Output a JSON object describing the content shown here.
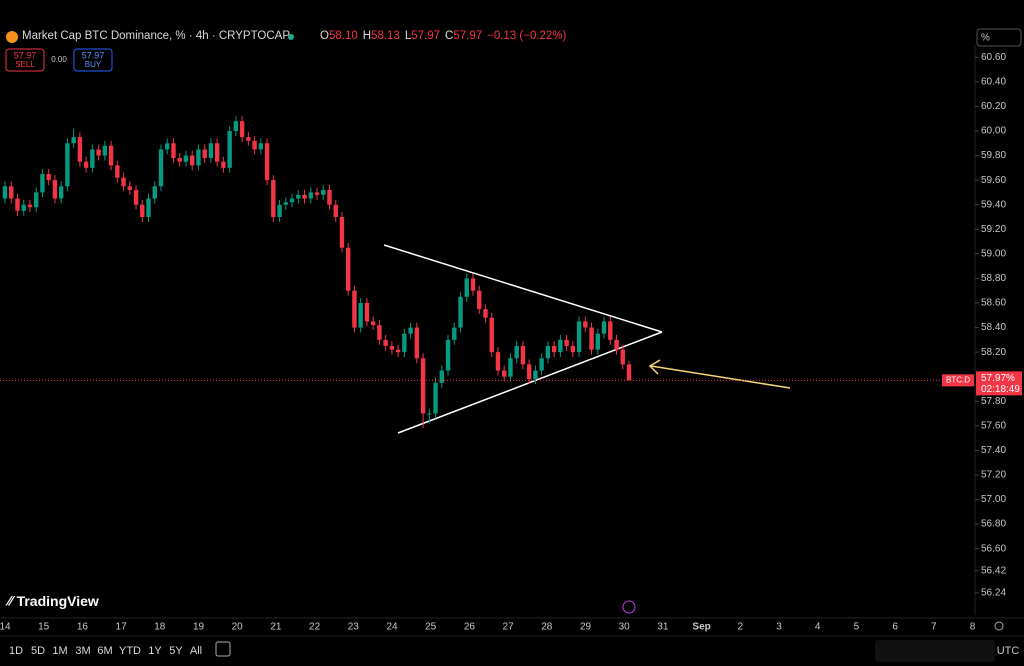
{
  "header": {
    "title": "Market Cap BTC Dominance, % · 4h · CRYPTOCAP",
    "ohlc": [
      {
        "label": "O",
        "value": "58.10"
      },
      {
        "label": "H",
        "value": "58.13"
      },
      {
        "label": "L",
        "value": "57.97"
      },
      {
        "label": "C",
        "value": "57.97"
      }
    ],
    "change": "−0.13 (−0.22%)"
  },
  "trade": {
    "sell_price": "57.97",
    "sell_label": "SELL",
    "spread": "0.00",
    "buy_price": "57.97",
    "buy_label": "BUY"
  },
  "chart_data": {
    "type": "candlestick",
    "open": [
      59.45,
      59.55,
      59.45,
      59.35,
      59.4,
      59.38,
      59.5,
      59.65,
      59.6,
      59.45,
      59.55,
      59.9,
      59.95,
      59.75,
      59.7,
      59.85,
      59.8,
      59.88,
      59.72,
      59.62,
      59.55,
      59.52,
      59.4,
      59.3,
      59.45,
      59.55,
      59.85,
      59.9,
      59.78,
      59.75,
      59.8,
      59.72,
      59.85,
      59.78,
      59.9,
      59.75,
      59.7,
      60.0,
      60.08,
      59.95,
      59.92,
      59.85,
      59.9,
      59.6,
      59.3,
      59.4,
      59.42,
      59.45,
      59.48,
      59.45,
      59.5,
      59.48,
      59.52,
      59.4,
      59.3,
      59.05,
      58.7,
      58.4,
      58.6,
      58.45,
      58.42,
      58.3,
      58.25,
      58.22,
      58.2,
      58.35,
      58.4,
      58.15,
      57.7,
      57.7,
      57.95,
      58.05,
      58.3,
      58.4,
      58.65,
      58.8,
      58.7,
      58.55,
      58.48,
      58.2,
      58.05,
      58.0,
      58.15,
      58.25,
      58.1,
      57.98,
      58.05,
      58.15,
      58.25,
      58.2,
      58.3,
      58.25,
      58.2,
      58.45,
      58.4,
      58.22,
      58.35,
      58.45,
      58.3,
      58.22,
      58.1
    ],
    "high": [
      59.59,
      59.59,
      59.49,
      59.44,
      59.44,
      59.54,
      59.69,
      59.69,
      59.64,
      59.59,
      59.94,
      60.02,
      59.99,
      59.79,
      59.89,
      59.89,
      59.92,
      59.92,
      59.76,
      59.66,
      59.59,
      59.56,
      59.44,
      59.49,
      59.59,
      59.89,
      59.94,
      59.94,
      59.82,
      59.84,
      59.84,
      59.89,
      59.89,
      59.94,
      59.94,
      59.79,
      60.04,
      60.12,
      60.12,
      59.99,
      59.96,
      59.94,
      59.94,
      59.64,
      59.44,
      59.46,
      59.49,
      59.52,
      59.52,
      59.54,
      59.54,
      59.56,
      59.56,
      59.44,
      59.34,
      59.09,
      58.74,
      58.64,
      58.64,
      58.49,
      58.46,
      58.34,
      58.29,
      58.26,
      58.39,
      58.44,
      58.44,
      58.19,
      57.74,
      57.99,
      58.09,
      58.34,
      58.44,
      58.69,
      58.84,
      58.84,
      58.74,
      58.59,
      58.52,
      58.24,
      58.09,
      58.19,
      58.29,
      58.29,
      58.14,
      58.09,
      58.19,
      58.29,
      58.29,
      58.34,
      58.34,
      58.29,
      58.49,
      58.49,
      58.44,
      58.39,
      58.49,
      58.49,
      58.34,
      58.26,
      58.13
    ],
    "low": [
      59.41,
      59.41,
      59.31,
      59.31,
      59.34,
      59.34,
      59.46,
      59.56,
      59.41,
      59.41,
      59.51,
      59.86,
      59.71,
      59.66,
      59.66,
      59.76,
      59.76,
      59.68,
      59.58,
      59.51,
      59.48,
      59.36,
      59.26,
      59.26,
      59.41,
      59.51,
      59.81,
      59.74,
      59.71,
      59.71,
      59.68,
      59.68,
      59.74,
      59.74,
      59.71,
      59.66,
      59.66,
      59.96,
      59.91,
      59.88,
      59.81,
      59.81,
      59.56,
      59.26,
      59.26,
      59.36,
      59.38,
      59.41,
      59.41,
      59.41,
      59.44,
      59.44,
      59.36,
      59.26,
      59.01,
      58.66,
      58.36,
      58.36,
      58.41,
      58.38,
      58.26,
      58.21,
      58.18,
      58.16,
      58.16,
      58.31,
      58.11,
      57.58,
      57.62,
      57.66,
      57.91,
      58.01,
      58.26,
      58.36,
      58.61,
      58.66,
      58.51,
      58.44,
      58.16,
      58.01,
      57.96,
      57.96,
      58.11,
      58.06,
      57.94,
      57.94,
      58.01,
      58.11,
      58.16,
      58.16,
      58.21,
      58.16,
      58.16,
      58.36,
      58.18,
      58.18,
      58.31,
      58.26,
      58.18,
      58.06,
      57.97
    ],
    "close": [
      59.55,
      59.45,
      59.35,
      59.4,
      59.38,
      59.5,
      59.65,
      59.6,
      59.45,
      59.55,
      59.9,
      59.95,
      59.75,
      59.7,
      59.85,
      59.8,
      59.88,
      59.72,
      59.62,
      59.55,
      59.52,
      59.4,
      59.3,
      59.45,
      59.55,
      59.85,
      59.9,
      59.78,
      59.75,
      59.8,
      59.72,
      59.85,
      59.78,
      59.9,
      59.75,
      59.7,
      60.0,
      60.08,
      59.95,
      59.92,
      59.85,
      59.9,
      59.6,
      59.3,
      59.4,
      59.42,
      59.45,
      59.48,
      59.45,
      59.5,
      59.48,
      59.52,
      59.4,
      59.3,
      59.05,
      58.7,
      58.4,
      58.6,
      58.45,
      58.42,
      58.3,
      58.25,
      58.22,
      58.2,
      58.35,
      58.4,
      58.15,
      57.7,
      57.7,
      57.95,
      58.05,
      58.3,
      58.4,
      58.65,
      58.8,
      58.7,
      58.55,
      58.48,
      58.2,
      58.05,
      58.0,
      58.15,
      58.25,
      58.1,
      57.98,
      58.05,
      58.15,
      58.25,
      58.2,
      58.3,
      58.25,
      58.2,
      58.45,
      58.4,
      58.22,
      58.35,
      58.45,
      58.3,
      58.22,
      58.1,
      57.97
    ],
    "ylim": [
      56.06,
      60.7
    ],
    "yticks": [
      {
        "value": 60.6,
        "label": "60.60"
      },
      {
        "value": 60.4,
        "label": "60.40"
      },
      {
        "value": 60.2,
        "label": "60.20"
      },
      {
        "value": 60,
        "label": "60.00"
      },
      {
        "value": 59.8,
        "label": "59.80"
      },
      {
        "value": 59.6,
        "label": "59.60"
      },
      {
        "value": 59.4,
        "label": "59.40"
      },
      {
        "value": 59.2,
        "label": "59.20"
      },
      {
        "value": 59,
        "label": "59.00"
      },
      {
        "value": 58.8,
        "label": "58.80"
      },
      {
        "value": 58.6,
        "label": "58.60"
      },
      {
        "value": 58.4,
        "label": "58.40"
      },
      {
        "value": 58.2,
        "label": "58.20"
      },
      {
        "value": 57.8,
        "label": "57.80"
      },
      {
        "value": 57.6,
        "label": "57.60"
      },
      {
        "value": 57.4,
        "label": "57.40"
      },
      {
        "value": 57.2,
        "label": "57.20"
      },
      {
        "value": 57,
        "label": "57.00"
      },
      {
        "value": 56.8,
        "label": "56.80"
      },
      {
        "value": 56.6,
        "label": "56.60"
      },
      56.42,
      56.24
    ],
    "x_labels": [
      "14",
      "15",
      "16",
      "17",
      "18",
      "19",
      "20",
      "21",
      "22",
      "23",
      "24",
      "25",
      "26",
      "27",
      "28",
      "29",
      "30",
      "31",
      "Sep",
      "2",
      "3",
      "4",
      "5",
      "6",
      "7",
      "8"
    ],
    "colors": {
      "up": "#089981",
      "down": "#f23645"
    },
    "price_label": {
      "symbol": "BTC.D",
      "value": "57.97%",
      "countdown": "02:18:49"
    },
    "unit_button": "%"
  },
  "logo": "TradingView",
  "toolbar": {
    "ranges": [
      "1D",
      "5D",
      "1M",
      "3M",
      "6M",
      "YTD",
      "1Y",
      "5Y",
      "All"
    ],
    "timezone": "UTC"
  }
}
